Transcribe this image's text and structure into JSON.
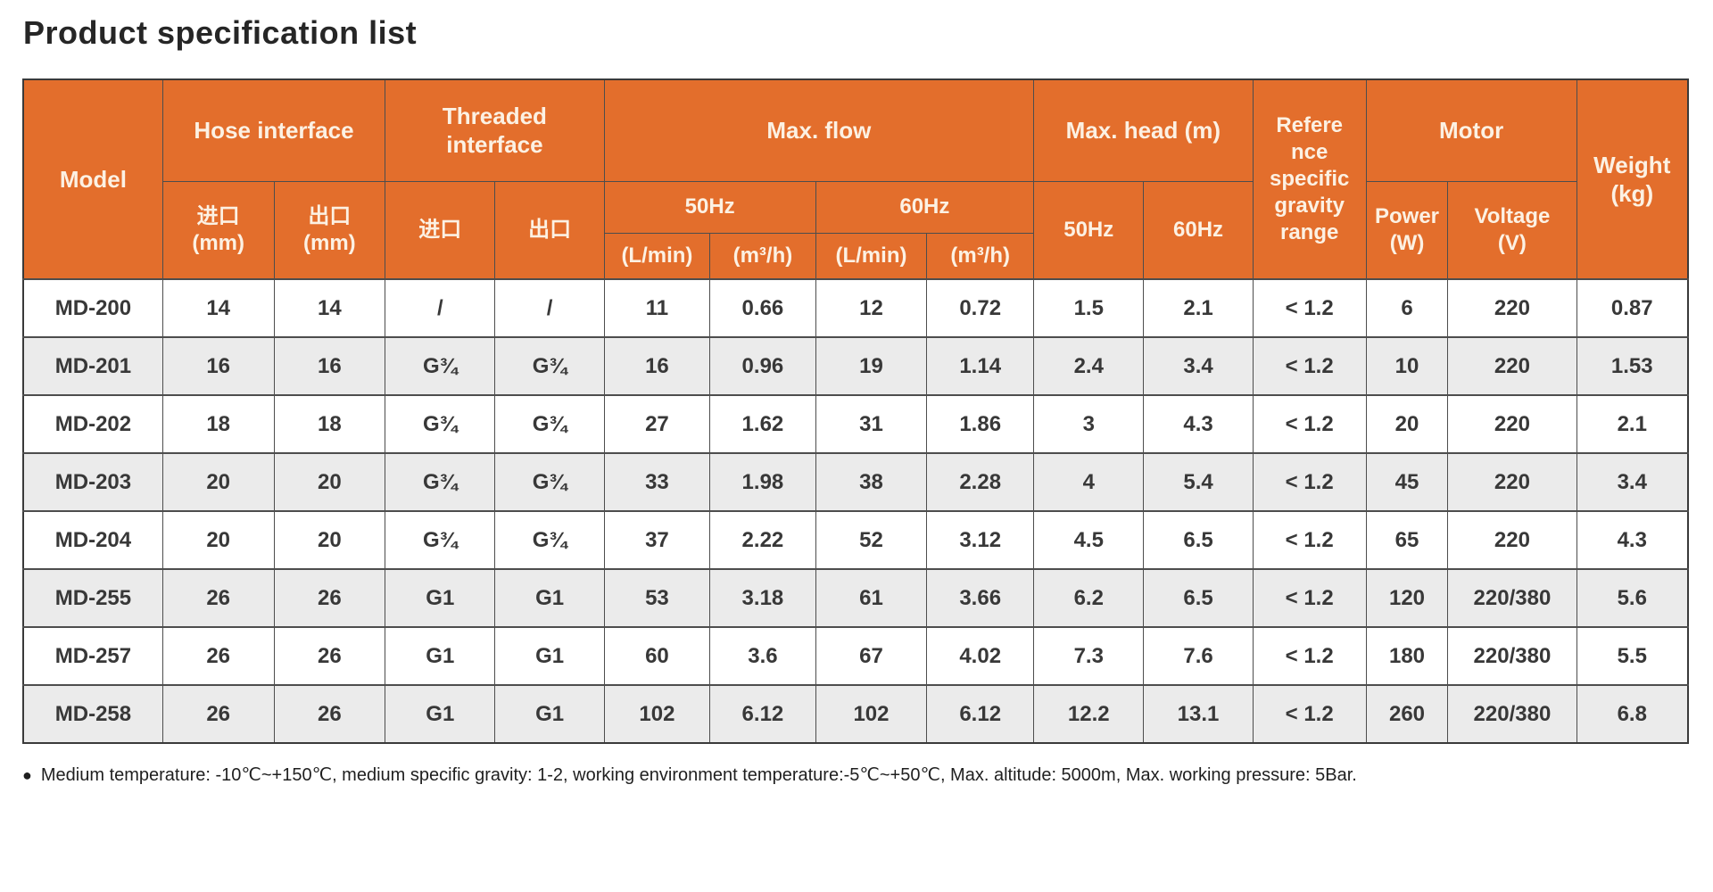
{
  "page": {
    "title": "Product specification list",
    "footnote_bullet": "●",
    "footnote": "Medium temperature: -10℃~+150℃, medium specific gravity: 1-2, working environment temperature:-5℃~+50℃, Max. altitude: 5000m, Max. working pressure: 5Bar."
  },
  "colors": {
    "header_bg": "#E36E2C",
    "header_text": "#FCF1E3",
    "alt_row_bg": "#EBEBEB",
    "border": "#4D4D4D",
    "body_text": "#383838"
  },
  "table": {
    "header": {
      "model": "Model",
      "hose_interface": "Hose interface",
      "threaded_interface": "Threaded\ninterface",
      "max_flow": "Max. flow",
      "max_head": "Max. head (m)",
      "ref_gravity": "Refere\nnce\nspecific\ngravity\nrange",
      "motor": "Motor",
      "weight": "Weight\n(kg)",
      "inlet_mm": "进口\n(mm)",
      "outlet_mm": "出口\n(mm)",
      "inlet": "进口",
      "outlet": "出口",
      "flow_50hz": "50Hz",
      "flow_60hz": "60Hz",
      "head_50hz": "50Hz",
      "head_60hz": "60Hz",
      "lmin_50": "(L/min)",
      "m3h_50": "(m³/h)",
      "lmin_60": "(L/min)",
      "m3h_60": "(m³/h)",
      "power": "Power\n(W)",
      "voltage": "Voltage\n(V)"
    },
    "rows": [
      [
        "MD-200",
        "14",
        "14",
        "/",
        "/",
        "11",
        "0.66",
        "12",
        "0.72",
        "1.5",
        "2.1",
        "< 1.2",
        "6",
        "220",
        "0.87"
      ],
      [
        "MD-201",
        "16",
        "16",
        "G¾",
        "G¾",
        "16",
        "0.96",
        "19",
        "1.14",
        "2.4",
        "3.4",
        "< 1.2",
        "10",
        "220",
        "1.53"
      ],
      [
        "MD-202",
        "18",
        "18",
        "G¾",
        "G¾",
        "27",
        "1.62",
        "31",
        "1.86",
        "3",
        "4.3",
        "< 1.2",
        "20",
        "220",
        "2.1"
      ],
      [
        "MD-203",
        "20",
        "20",
        "G¾",
        "G¾",
        "33",
        "1.98",
        "38",
        "2.28",
        "4",
        "5.4",
        "< 1.2",
        "45",
        "220",
        "3.4"
      ],
      [
        "MD-204",
        "20",
        "20",
        "G¾",
        "G¾",
        "37",
        "2.22",
        "52",
        "3.12",
        "4.5",
        "6.5",
        "< 1.2",
        "65",
        "220",
        "4.3"
      ],
      [
        "MD-255",
        "26",
        "26",
        "G1",
        "G1",
        "53",
        "3.18",
        "61",
        "3.66",
        "6.2",
        "6.5",
        "< 1.2",
        "120",
        "220/380",
        "5.6"
      ],
      [
        "MD-257",
        "26",
        "26",
        "G1",
        "G1",
        "60",
        "3.6",
        "67",
        "4.02",
        "7.3",
        "7.6",
        "< 1.2",
        "180",
        "220/380",
        "5.5"
      ],
      [
        "MD-258",
        "26",
        "26",
        "G1",
        "G1",
        "102",
        "6.12",
        "102",
        "6.12",
        "12.2",
        "13.1",
        "< 1.2",
        "260",
        "220/380",
        "6.8"
      ]
    ]
  }
}
